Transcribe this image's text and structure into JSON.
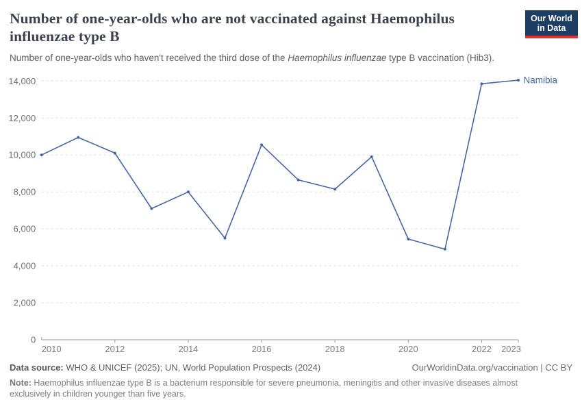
{
  "header": {
    "subtitle_prefix": "Number of one-year-olds who haven't received the third dose of the ",
    "subtitle_italic": "Haemophilus influenzae",
    "subtitle_suffix": " type B vaccination (Hib3).",
    "logo_line1": "Our World",
    "logo_line2": "in Data"
  },
  "chart_data": {
    "type": "line",
    "title": "Number of one-year-olds who are not vaccinated against Haemophilus influenzae type B",
    "subtitle": "Number of one-year-olds who haven't received the third dose of the Haemophilus influenzae type B vaccination (Hib3).",
    "xlabel": "",
    "ylabel": "",
    "xlim": [
      2010,
      2023
    ],
    "ylim": [
      0,
      14000
    ],
    "grid": "horizontal-dashed",
    "legend_position": "end-of-line-label",
    "x_ticks": [
      2010,
      2012,
      2014,
      2016,
      2018,
      2020,
      2022,
      2023
    ],
    "y_ticks": [
      0,
      2000,
      4000,
      6000,
      8000,
      10000,
      12000,
      14000
    ],
    "series": [
      {
        "name": "Namibia",
        "color": "#4665a3",
        "x": [
          2010,
          2011,
          2012,
          2013,
          2014,
          2015,
          2016,
          2017,
          2018,
          2019,
          2020,
          2021,
          2022,
          2023
        ],
        "values": [
          10000,
          10950,
          10100,
          7100,
          8000,
          5500,
          10550,
          8650,
          8150,
          9900,
          5450,
          4900,
          13850,
          14050
        ]
      }
    ]
  },
  "footer": {
    "data_source_label": "Data source:",
    "data_source_text": " WHO & UNICEF (2025); UN, World Population Prospects (2024)",
    "attribution": "OurWorldinData.org/vaccination | CC BY",
    "note_label": "Note:",
    "note_text": " Haemophilus influenzae type B is a bacterium responsible for severe pneumonia, meningitis and other invasive diseases almost exclusively in children younger than five years."
  },
  "colors": {
    "line": "#4665a3",
    "logo_bg": "#1d3d63",
    "logo_accent": "#e0342c",
    "title_text": "#3d434e",
    "gridline": "#dcdcdc",
    "axis": "#9a9a9a"
  }
}
